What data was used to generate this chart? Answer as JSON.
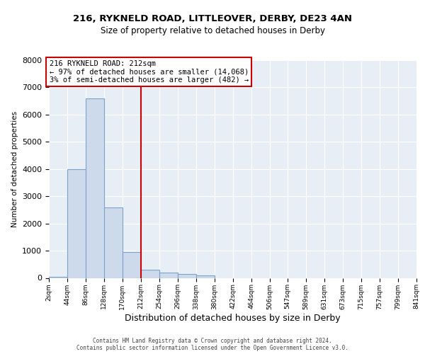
{
  "title1": "216, RYKNELD ROAD, LITTLEOVER, DERBY, DE23 4AN",
  "title2": "Size of property relative to detached houses in Derby",
  "xlabel": "Distribution of detached houses by size in Derby",
  "ylabel": "Number of detached properties",
  "bin_labels": [
    "2sqm",
    "44sqm",
    "86sqm",
    "128sqm",
    "170sqm",
    "212sqm",
    "254sqm",
    "296sqm",
    "338sqm",
    "380sqm",
    "422sqm",
    "464sqm",
    "506sqm",
    "547sqm",
    "589sqm",
    "631sqm",
    "673sqm",
    "715sqm",
    "757sqm",
    "799sqm",
    "841sqm"
  ],
  "bin_edges": [
    2,
    44,
    86,
    128,
    170,
    212,
    254,
    296,
    338,
    380,
    422,
    464,
    506,
    547,
    589,
    631,
    673,
    715,
    757,
    799,
    841
  ],
  "bar_heights": [
    50,
    4000,
    6600,
    2600,
    950,
    300,
    200,
    150,
    100,
    0,
    0,
    0,
    0,
    0,
    0,
    0,
    0,
    0,
    0,
    0
  ],
  "bar_color": "#cddaeb",
  "bar_edge_color": "#7ba3cc",
  "property_line_x": 212,
  "property_line_color": "#cc0000",
  "annotation_line1": "216 RYKNELD ROAD: 212sqm",
  "annotation_line2": "← 97% of detached houses are smaller (14,068)",
  "annotation_line3": "3% of semi-detached houses are larger (482) →",
  "annotation_box_color": "#cc0000",
  "ylim": [
    0,
    8000
  ],
  "yticks": [
    0,
    1000,
    2000,
    3000,
    4000,
    5000,
    6000,
    7000,
    8000
  ],
  "footer1": "Contains HM Land Registry data © Crown copyright and database right 2024.",
  "footer2": "Contains public sector information licensed under the Open Government Licence v3.0.",
  "bg_color": "#e8eef5",
  "grid_color": "#ffffff"
}
